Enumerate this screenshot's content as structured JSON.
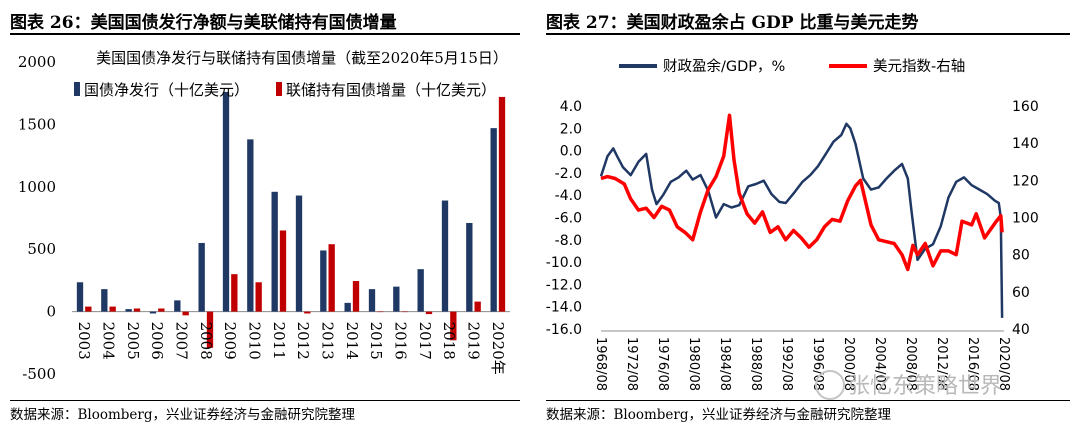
{
  "left_figure": {
    "title": "图表 26：美国国债发行净额与美联储持有国债增量",
    "source": "数据来源：Bloomberg，兴业证券经济与金融研究院整理"
  },
  "right_figure": {
    "title": "图表 27：美国财政盈余占 GDP 比重与美元走势",
    "source": "数据来源：Bloomberg，兴业证券经济与金融研究院整理"
  },
  "watermark": "张忆东策略世界",
  "chart_data": [
    {
      "type": "bar",
      "title": "美国国债净发行与联储持有国债增量（截至2020年5月15日）",
      "categories": [
        "2003",
        "2004",
        "2005",
        "2006",
        "2007",
        "2008",
        "2009",
        "2010",
        "2011",
        "2012",
        "2013",
        "2014",
        "2015",
        "2016",
        "2017",
        "2018",
        "2019",
        "2020年"
      ],
      "series": [
        {
          "name": "国债净发行（十亿美元）",
          "color": "#1f3864",
          "values": [
            235,
            180,
            20,
            -15,
            90,
            550,
            1760,
            1380,
            960,
            930,
            490,
            70,
            180,
            200,
            340,
            890,
            710,
            1470
          ]
        },
        {
          "name": "联储持有国债增量（十亿美元）",
          "color": "#c00000",
          "values": [
            40,
            40,
            25,
            25,
            -30,
            -290,
            300,
            235,
            650,
            -15,
            540,
            245,
            0,
            0,
            -20,
            -230,
            80,
            1720
          ]
        }
      ],
      "yticks": [
        -500,
        0,
        500,
        1000,
        1500,
        2000
      ],
      "ylim": [
        -500,
        2000
      ],
      "legend_position": "top-left"
    },
    {
      "type": "line",
      "series": [
        {
          "name": "财政盈余/GDP，%",
          "axis": "left",
          "color": "#1f3864",
          "points": [
            [
              "1968-08",
              -2.3
            ],
            [
              "1969-06",
              -0.5
            ],
            [
              "1970-03",
              0.2
            ],
            [
              "1970-09",
              -0.5
            ],
            [
              "1971-06",
              -1.5
            ],
            [
              "1972-06",
              -2.2
            ],
            [
              "1973-06",
              -1.0
            ],
            [
              "1974-06",
              -0.3
            ],
            [
              "1975-03",
              -3.5
            ],
            [
              "1975-10",
              -4.8
            ],
            [
              "1976-08",
              -4.0
            ],
            [
              "1977-08",
              -2.8
            ],
            [
              "1978-08",
              -2.4
            ],
            [
              "1979-08",
              -1.8
            ],
            [
              "1980-06",
              -2.6
            ],
            [
              "1981-06",
              -2.2
            ],
            [
              "1982-06",
              -3.6
            ],
            [
              "1983-06",
              -6.0
            ],
            [
              "1984-06",
              -4.8
            ],
            [
              "1985-06",
              -5.1
            ],
            [
              "1986-06",
              -4.9
            ],
            [
              "1987-08",
              -3.2
            ],
            [
              "1988-08",
              -3.0
            ],
            [
              "1989-08",
              -2.7
            ],
            [
              "1990-08",
              -3.9
            ],
            [
              "1991-08",
              -4.6
            ],
            [
              "1992-06",
              -4.7
            ],
            [
              "1993-08",
              -3.7
            ],
            [
              "1994-08",
              -2.8
            ],
            [
              "1995-08",
              -2.2
            ],
            [
              "1996-08",
              -1.4
            ],
            [
              "1997-08",
              -0.3
            ],
            [
              "1998-08",
              0.8
            ],
            [
              "1999-08",
              1.4
            ],
            [
              "2000-04",
              2.4
            ],
            [
              "2000-10",
              2.0
            ],
            [
              "2001-06",
              0.6
            ],
            [
              "2002-06",
              -2.5
            ],
            [
              "2003-06",
              -3.5
            ],
            [
              "2004-06",
              -3.3
            ],
            [
              "2005-06",
              -2.5
            ],
            [
              "2006-06",
              -1.8
            ],
            [
              "2007-06",
              -1.2
            ],
            [
              "2008-03",
              -2.5
            ],
            [
              "2008-09",
              -5.5
            ],
            [
              "2009-06",
              -9.8
            ],
            [
              "2010-06",
              -8.8
            ],
            [
              "2011-06",
              -8.4
            ],
            [
              "2012-06",
              -6.8
            ],
            [
              "2013-06",
              -4.2
            ],
            [
              "2014-06",
              -2.8
            ],
            [
              "2015-06",
              -2.4
            ],
            [
              "2016-06",
              -3.1
            ],
            [
              "2017-06",
              -3.5
            ],
            [
              "2018-06",
              -3.9
            ],
            [
              "2019-06",
              -4.5
            ],
            [
              "2019-12",
              -4.7
            ],
            [
              "2020-03",
              -6.0
            ],
            [
              "2020-05",
              -15.0
            ]
          ]
        },
        {
          "name": "美元指数-右轴",
          "axis": "right",
          "color": "#ff0000",
          "points": [
            [
              "1968-08",
              121
            ],
            [
              "1969-06",
              122
            ],
            [
              "1970-06",
              121
            ],
            [
              "1971-08",
              118
            ],
            [
              "1972-06",
              110
            ],
            [
              "1973-06",
              104
            ],
            [
              "1974-06",
              105
            ],
            [
              "1975-06",
              100
            ],
            [
              "1976-06",
              106
            ],
            [
              "1977-06",
              104
            ],
            [
              "1978-06",
              95
            ],
            [
              "1979-06",
              92
            ],
            [
              "1980-06",
              88
            ],
            [
              "1981-06",
              103
            ],
            [
              "1982-06",
              115
            ],
            [
              "1983-06",
              122
            ],
            [
              "1984-06",
              133
            ],
            [
              "1985-03",
              155
            ],
            [
              "1985-10",
              131
            ],
            [
              "1986-06",
              113
            ],
            [
              "1987-06",
              102
            ],
            [
              "1988-06",
              97
            ],
            [
              "1989-06",
              103
            ],
            [
              "1990-06",
              92
            ],
            [
              "1991-06",
              95
            ],
            [
              "1992-06",
              88
            ],
            [
              "1993-06",
              93
            ],
            [
              "1994-06",
              89
            ],
            [
              "1995-06",
              84
            ],
            [
              "1996-06",
              88
            ],
            [
              "1997-06",
              95
            ],
            [
              "1998-06",
              99
            ],
            [
              "1999-06",
              98
            ],
            [
              "2000-06",
              109
            ],
            [
              "2001-06",
              117
            ],
            [
              "2002-02",
              120
            ],
            [
              "2002-12",
              105
            ],
            [
              "2003-06",
              96
            ],
            [
              "2004-06",
              88
            ],
            [
              "2005-06",
              87
            ],
            [
              "2006-06",
              86
            ],
            [
              "2007-06",
              80
            ],
            [
              "2008-03",
              72
            ],
            [
              "2008-11",
              85
            ],
            [
              "2009-06",
              80
            ],
            [
              "2010-06",
              86
            ],
            [
              "2011-06",
              74
            ],
            [
              "2012-06",
              82
            ],
            [
              "2013-06",
              82
            ],
            [
              "2014-06",
              80
            ],
            [
              "2015-03",
              98
            ],
            [
              "2016-06",
              96
            ],
            [
              "2017-01",
              102
            ],
            [
              "2018-02",
              89
            ],
            [
              "2019-06",
              97
            ],
            [
              "2020-03",
              101
            ],
            [
              "2020-05",
              92
            ]
          ]
        }
      ],
      "y_left_ticks": [
        "4.0",
        "2.0",
        "0.0",
        "-2.0",
        "-4.0",
        "-6.0",
        "-8.0",
        "-10.0",
        "-12.0",
        "-14.0",
        "-16.0"
      ],
      "y_left_lim": [
        -16,
        4
      ],
      "y_right_ticks": [
        "160",
        "140",
        "120",
        "100",
        "80",
        "60",
        "40"
      ],
      "y_right_lim": [
        40,
        160
      ],
      "x_ticks": [
        "1968/08",
        "1972/08",
        "1976/08",
        "1980/08",
        "1984/08",
        "1988/08",
        "1992/08",
        "1996/08",
        "2000/08",
        "2004/08",
        "2008/08",
        "2012/08",
        "2016/08",
        "2020/08"
      ],
      "x_range": [
        "1968-08",
        "2020-08"
      ],
      "legend_position": "top"
    }
  ]
}
